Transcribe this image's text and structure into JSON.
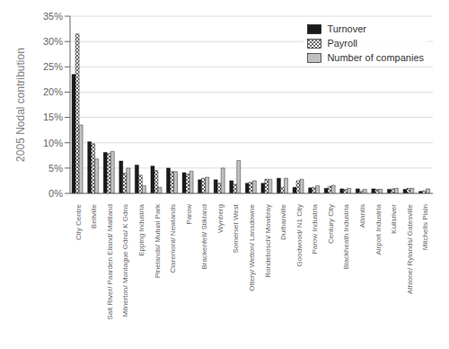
{
  "chart_data": {
    "type": "bar",
    "ylabel": "2005 Nodal contribution",
    "categories": [
      "City Centre",
      "Bellville",
      "Salt River/ Paarden Eiland/ Maitland",
      "Milnerton/ Montague Gdns/ K Gdns",
      "Epping Industria",
      "Pinelands/ Mutual Park",
      "Claremont/ Newlands",
      "Parow",
      "Brackenfell/ Stikland",
      "Wynberg",
      "Somerset West",
      "Ottery/ Wetton/ Lansdowne",
      "Rondebosch/ Mowbray",
      "Durbanville",
      "Goodwood/ N1 City",
      "Parow Industria",
      "Century City",
      "Blackheath Industria",
      "Atlantis",
      "Airport Industria",
      "Kuilsriver",
      "Athlone/ Rylands/ Gatesville",
      "Mitchells Plain"
    ],
    "series": [
      {
        "name": "Turnover",
        "color": "#1a1a1a",
        "values": [
          23.5,
          10.2,
          8.1,
          6.4,
          5.6,
          5.4,
          5.0,
          4.1,
          2.7,
          2.7,
          2.5,
          2.0,
          2.0,
          3.0,
          1.2,
          1.1,
          1.0,
          0.9,
          0.9,
          0.9,
          0.8,
          0.8,
          0.4
        ]
      },
      {
        "name": "Payroll",
        "color": "#ffffff",
        "values": [
          31.5,
          9.8,
          7.9,
          4.0,
          3.6,
          4.5,
          4.3,
          3.8,
          3.0,
          2.0,
          1.8,
          2.2,
          2.8,
          1.2,
          2.5,
          1.2,
          1.4,
          0.8,
          0.5,
          0.8,
          0.9,
          1.0,
          0.5
        ]
      },
      {
        "name": "Number of companies",
        "color": "#c0c0c0",
        "values": [
          13.5,
          6.8,
          8.3,
          5.0,
          1.5,
          1.2,
          4.3,
          4.4,
          3.2,
          5.0,
          6.5,
          2.5,
          2.8,
          3.0,
          2.8,
          1.5,
          1.6,
          1.0,
          0.8,
          0.8,
          1.0,
          1.0,
          0.9
        ]
      }
    ],
    "ylim": [
      0,
      35
    ],
    "yticks": [
      {
        "value": 0,
        "label": "0%"
      },
      {
        "value": 5,
        "label": "5%"
      },
      {
        "value": 10,
        "label": "10%"
      },
      {
        "value": 15,
        "label": "15%"
      },
      {
        "value": 20,
        "label": "20%"
      },
      {
        "value": 25,
        "label": "25%"
      },
      {
        "value": 30,
        "label": "30%"
      },
      {
        "value": 35,
        "label": "35%"
      }
    ],
    "grid": true,
    "legend": "upper right"
  }
}
